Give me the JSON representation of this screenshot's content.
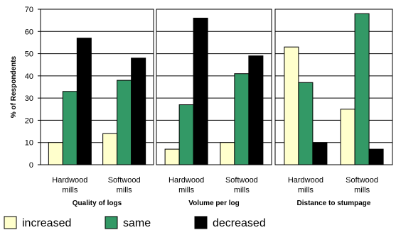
{
  "chart_data": {
    "type": "bar",
    "ylabel": "% of Respondents",
    "ylim": [
      0,
      70
    ],
    "yticks": [
      0,
      10,
      20,
      30,
      40,
      50,
      60,
      70
    ],
    "grid": true,
    "legend_position": "bottom-left",
    "categories": [
      [
        "Hardwood",
        "mills"
      ],
      [
        "Softwood",
        "mills"
      ]
    ],
    "series": [
      {
        "name": "increased",
        "color": "#FFFFCC"
      },
      {
        "name": "same",
        "color": "#339966"
      },
      {
        "name": "decreased",
        "color": "#000000"
      }
    ],
    "panels": [
      {
        "title": "Quality of logs",
        "values": {
          "increased": [
            10,
            14
          ],
          "same": [
            33,
            38
          ],
          "decreased": [
            57,
            48
          ]
        }
      },
      {
        "title": "Volume per log",
        "values": {
          "increased": [
            7,
            10
          ],
          "same": [
            27,
            41
          ],
          "decreased": [
            66,
            49
          ]
        }
      },
      {
        "title": "Distance to stumpage",
        "values": {
          "increased": [
            53,
            25
          ],
          "same": [
            37,
            68
          ],
          "decreased": [
            10,
            7
          ]
        }
      }
    ]
  }
}
